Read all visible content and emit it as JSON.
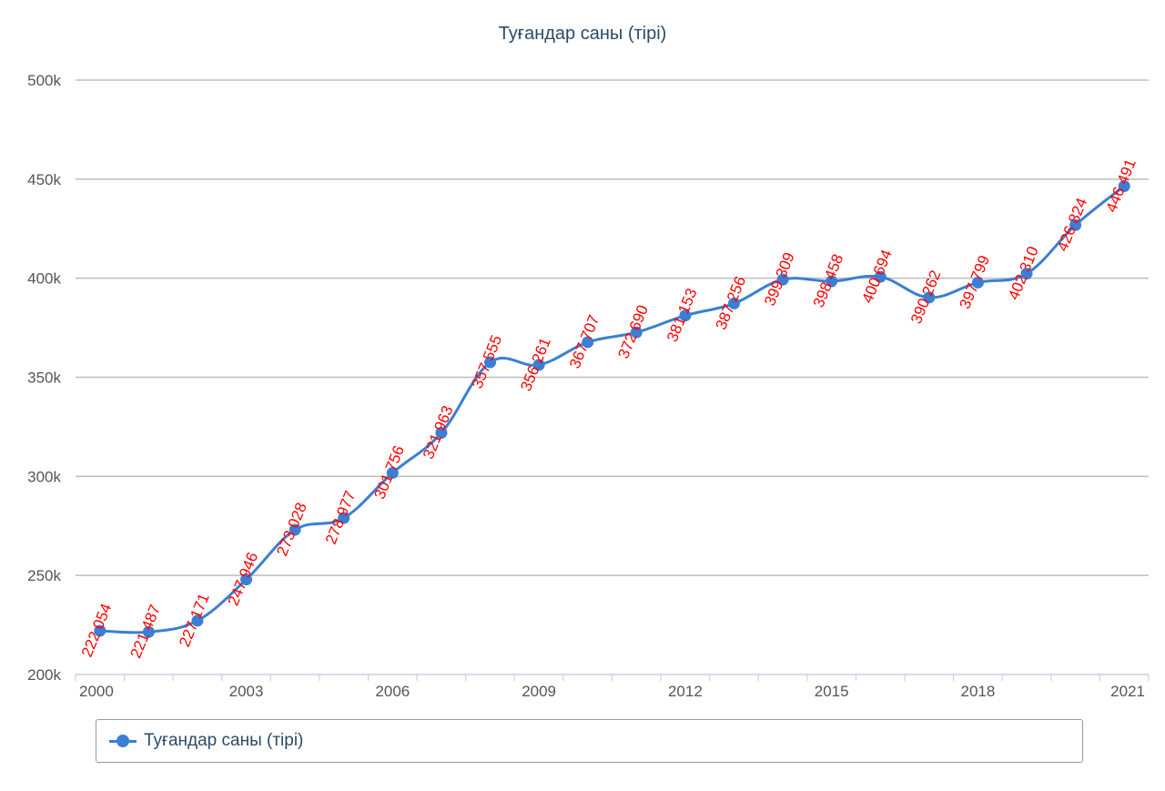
{
  "chart_data": {
    "type": "line",
    "title": "Туғандар саны (тірі)",
    "xlabel": "",
    "ylabel": "",
    "ylim": [
      200000,
      500000
    ],
    "y_ticks": [
      "200k",
      "250k",
      "300k",
      "350k",
      "400k",
      "450k",
      "500k"
    ],
    "y_tick_values": [
      200000,
      250000,
      300000,
      350000,
      400000,
      450000,
      500000
    ],
    "x": [
      2000,
      2001,
      2002,
      2003,
      2004,
      2005,
      2006,
      2007,
      2008,
      2009,
      2010,
      2011,
      2012,
      2013,
      2014,
      2015,
      2016,
      2017,
      2018,
      2019,
      2020,
      2021
    ],
    "x_tick_labels": [
      "2000",
      "2003",
      "2006",
      "2009",
      "2012",
      "2015",
      "2018",
      "2021"
    ],
    "series": [
      {
        "name": "Туғандар саны (тірі)",
        "color": "#3a7fd5",
        "values": [
          222054,
          221487,
          227171,
          247946,
          273028,
          278977,
          301756,
          321963,
          357555,
          356261,
          367707,
          372690,
          381153,
          387256,
          399309,
          398458,
          400694,
          390262,
          397799,
          402310,
          426824,
          446491
        ],
        "labels": [
          "222 054",
          "221 487",
          "227 171",
          "247 946",
          "273 028",
          "278 977",
          "301 756",
          "321 963",
          "357 555",
          "356 261",
          "367 707",
          "372 690",
          "381 153",
          "387 256",
          "399 309",
          "398 458",
          "400 694",
          "390 262",
          "397 799",
          "402 310",
          "426 824",
          "446 491"
        ],
        "label_color": "#ff0000"
      }
    ],
    "grid": true,
    "legend": "bottom"
  }
}
